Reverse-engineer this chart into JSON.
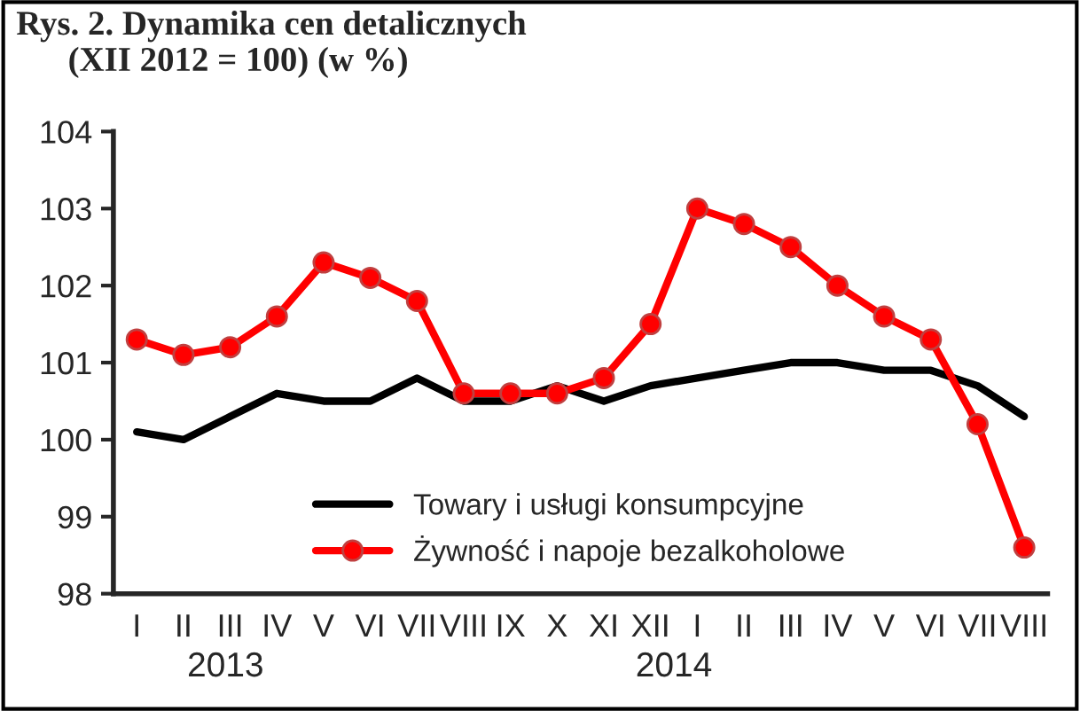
{
  "chart_data": {
    "type": "line",
    "title": "Rys. 2. Dynamika cen detalicznych\n      (XII 2012 = 100) (w %)",
    "categories": [
      "I",
      "II",
      "III",
      "IV",
      "V",
      "VI",
      "VII",
      "VIII",
      "IX",
      "X",
      "XI",
      "XII",
      "I",
      "II",
      "III",
      "IV",
      "V",
      "VI",
      "VII",
      "VIII"
    ],
    "series": [
      {
        "name": "Towary i usługi konsumpcyjne",
        "color": "#000000",
        "marker": "none",
        "values": [
          100.1,
          100.0,
          100.3,
          100.6,
          100.5,
          100.5,
          100.8,
          100.5,
          100.5,
          100.7,
          100.5,
          100.7,
          100.8,
          100.9,
          101.0,
          101.0,
          100.9,
          100.9,
          100.7,
          100.3
        ]
      },
      {
        "name": "Żywność i napoje bezalkoholowe",
        "color": "#ff0000",
        "marker": "circle",
        "values": [
          101.3,
          101.1,
          101.2,
          101.6,
          102.3,
          102.1,
          101.8,
          100.6,
          100.6,
          100.6,
          100.8,
          101.5,
          103.0,
          102.8,
          102.5,
          102.0,
          101.6,
          101.3,
          100.2,
          98.6
        ]
      }
    ],
    "ylim": [
      98,
      104
    ],
    "yticks": [
      98,
      99,
      100,
      101,
      102,
      103,
      104
    ],
    "grid": false,
    "legend": "bottom",
    "line_style": "solid",
    "annotations": [
      "2013",
      "2014"
    ]
  }
}
